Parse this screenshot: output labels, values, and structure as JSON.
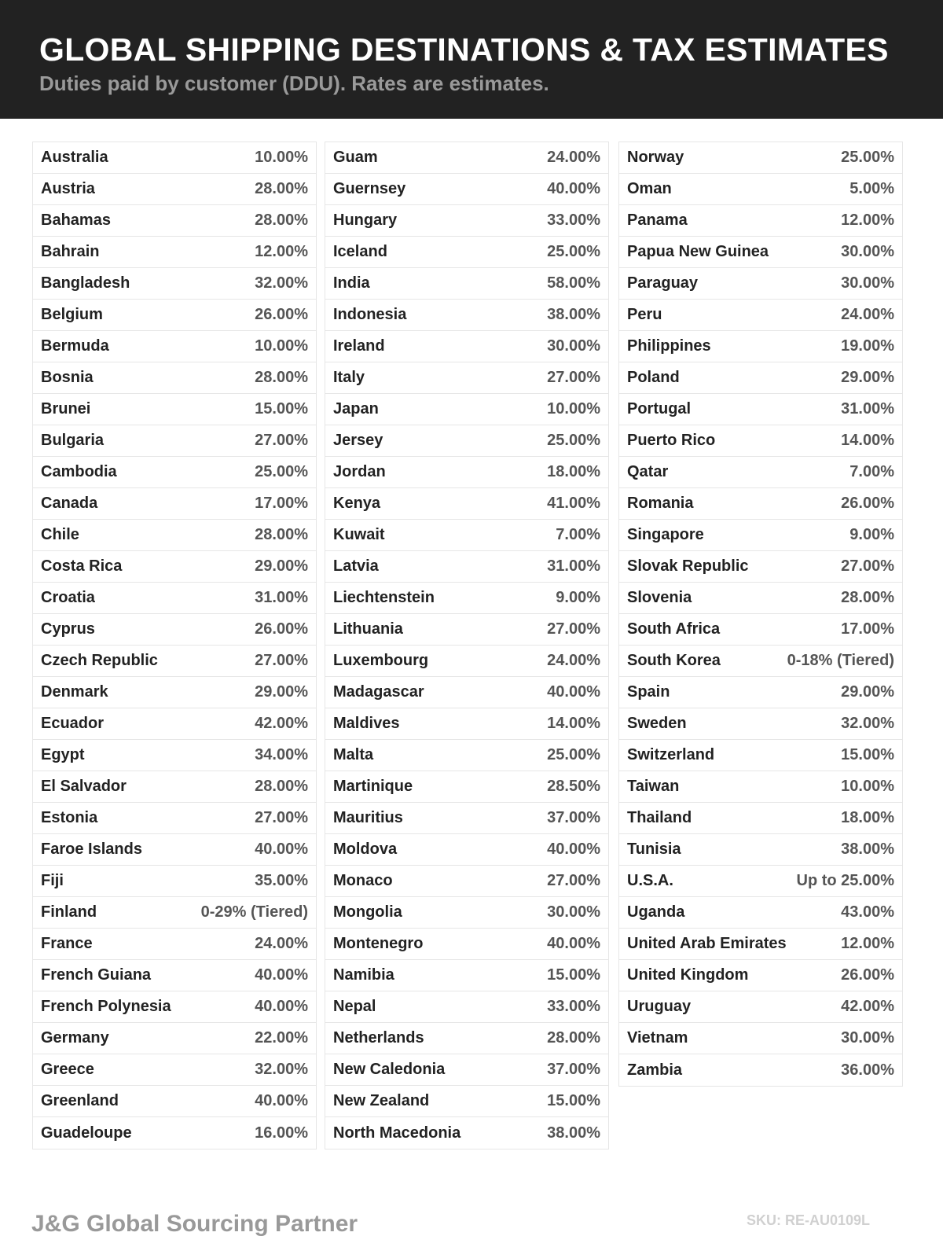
{
  "header": {
    "title": "GLOBAL SHIPPING DESTINATIONS & TAX ESTIMATES",
    "subtitle": "Duties paid by customer (DDU). Rates are estimates."
  },
  "columns": [
    [
      {
        "country": "Australia",
        "rate": "10.00%"
      },
      {
        "country": "Austria",
        "rate": "28.00%"
      },
      {
        "country": "Bahamas",
        "rate": "28.00%"
      },
      {
        "country": "Bahrain",
        "rate": "12.00%"
      },
      {
        "country": "Bangladesh",
        "rate": "32.00%"
      },
      {
        "country": "Belgium",
        "rate": "26.00%"
      },
      {
        "country": "Bermuda",
        "rate": "10.00%"
      },
      {
        "country": "Bosnia",
        "rate": "28.00%"
      },
      {
        "country": "Brunei",
        "rate": "15.00%"
      },
      {
        "country": "Bulgaria",
        "rate": "27.00%"
      },
      {
        "country": "Cambodia",
        "rate": "25.00%"
      },
      {
        "country": "Canada",
        "rate": "17.00%"
      },
      {
        "country": "Chile",
        "rate": "28.00%"
      },
      {
        "country": "Costa Rica",
        "rate": "29.00%"
      },
      {
        "country": "Croatia",
        "rate": "31.00%"
      },
      {
        "country": "Cyprus",
        "rate": "26.00%"
      },
      {
        "country": "Czech Republic",
        "rate": "27.00%"
      },
      {
        "country": "Denmark",
        "rate": "29.00%"
      },
      {
        "country": "Ecuador",
        "rate": "42.00%"
      },
      {
        "country": "Egypt",
        "rate": "34.00%"
      },
      {
        "country": "El Salvador",
        "rate": "28.00%"
      },
      {
        "country": "Estonia",
        "rate": "27.00%"
      },
      {
        "country": "Faroe Islands",
        "rate": "40.00%"
      },
      {
        "country": "Fiji",
        "rate": "35.00%"
      },
      {
        "country": "Finland",
        "rate": "0-29% (Tiered)"
      },
      {
        "country": "France",
        "rate": "24.00%"
      },
      {
        "country": "French Guiana",
        "rate": "40.00%"
      },
      {
        "country": "French Polynesia",
        "rate": "40.00%"
      },
      {
        "country": "Germany",
        "rate": "22.00%"
      },
      {
        "country": "Greece",
        "rate": "32.00%"
      },
      {
        "country": "Greenland",
        "rate": "40.00%"
      },
      {
        "country": "Guadeloupe",
        "rate": "16.00%"
      }
    ],
    [
      {
        "country": "Guam",
        "rate": "24.00%"
      },
      {
        "country": "Guernsey",
        "rate": "40.00%"
      },
      {
        "country": "Hungary",
        "rate": "33.00%"
      },
      {
        "country": "Iceland",
        "rate": "25.00%"
      },
      {
        "country": "India",
        "rate": "58.00%"
      },
      {
        "country": "Indonesia",
        "rate": "38.00%"
      },
      {
        "country": "Ireland",
        "rate": "30.00%"
      },
      {
        "country": "Italy",
        "rate": "27.00%"
      },
      {
        "country": "Japan",
        "rate": "10.00%"
      },
      {
        "country": "Jersey",
        "rate": "25.00%"
      },
      {
        "country": "Jordan",
        "rate": "18.00%"
      },
      {
        "country": "Kenya",
        "rate": "41.00%"
      },
      {
        "country": "Kuwait",
        "rate": "7.00%"
      },
      {
        "country": "Latvia",
        "rate": "31.00%"
      },
      {
        "country": "Liechtenstein",
        "rate": "9.00%"
      },
      {
        "country": "Lithuania",
        "rate": "27.00%"
      },
      {
        "country": "Luxembourg",
        "rate": "24.00%"
      },
      {
        "country": "Madagascar",
        "rate": "40.00%"
      },
      {
        "country": "Maldives",
        "rate": "14.00%"
      },
      {
        "country": "Malta",
        "rate": "25.00%"
      },
      {
        "country": "Martinique",
        "rate": "28.50%"
      },
      {
        "country": "Mauritius",
        "rate": "37.00%"
      },
      {
        "country": "Moldova",
        "rate": "40.00%"
      },
      {
        "country": "Monaco",
        "rate": "27.00%"
      },
      {
        "country": "Mongolia",
        "rate": "30.00%"
      },
      {
        "country": "Montenegro",
        "rate": "40.00%"
      },
      {
        "country": "Namibia",
        "rate": "15.00%"
      },
      {
        "country": "Nepal",
        "rate": "33.00%"
      },
      {
        "country": "Netherlands",
        "rate": "28.00%"
      },
      {
        "country": "New Caledonia",
        "rate": "37.00%"
      },
      {
        "country": "New Zealand",
        "rate": "15.00%"
      },
      {
        "country": "North Macedonia",
        "rate": "38.00%"
      }
    ],
    [
      {
        "country": "Norway",
        "rate": "25.00%"
      },
      {
        "country": "Oman",
        "rate": "5.00%"
      },
      {
        "country": "Panama",
        "rate": "12.00%"
      },
      {
        "country": "Papua New Guinea",
        "rate": "30.00%"
      },
      {
        "country": "Paraguay",
        "rate": "30.00%"
      },
      {
        "country": "Peru",
        "rate": "24.00%"
      },
      {
        "country": "Philippines",
        "rate": "19.00%"
      },
      {
        "country": "Poland",
        "rate": "29.00%"
      },
      {
        "country": "Portugal",
        "rate": "31.00%"
      },
      {
        "country": "Puerto Rico",
        "rate": "14.00%"
      },
      {
        "country": "Qatar",
        "rate": "7.00%"
      },
      {
        "country": "Romania",
        "rate": "26.00%"
      },
      {
        "country": "Singapore",
        "rate": "9.00%"
      },
      {
        "country": "Slovak Republic",
        "rate": "27.00%"
      },
      {
        "country": "Slovenia",
        "rate": "28.00%"
      },
      {
        "country": "South Africa",
        "rate": "17.00%"
      },
      {
        "country": "South Korea",
        "rate": "0-18% (Tiered)"
      },
      {
        "country": "Spain",
        "rate": "29.00%"
      },
      {
        "country": "Sweden",
        "rate": "32.00%"
      },
      {
        "country": "Switzerland",
        "rate": "15.00%"
      },
      {
        "country": "Taiwan",
        "rate": "10.00%"
      },
      {
        "country": "Thailand",
        "rate": "18.00%"
      },
      {
        "country": "Tunisia",
        "rate": "38.00%"
      },
      {
        "country": "U.S.A.",
        "rate": "Up to 25.00%"
      },
      {
        "country": "Uganda",
        "rate": "43.00%"
      },
      {
        "country": "United Arab Emirates",
        "rate": "12.00%"
      },
      {
        "country": "United Kingdom",
        "rate": "26.00%"
      },
      {
        "country": "Uruguay",
        "rate": "42.00%"
      },
      {
        "country": "Vietnam",
        "rate": "30.00%"
      },
      {
        "country": "Zambia",
        "rate": "36.00%"
      }
    ]
  ],
  "footer": {
    "brand": "J&G Global Sourcing Partner",
    "sku": "SKU: RE-AU0109L"
  },
  "colors": {
    "header_bg": "#222222",
    "rate_text": "#555555",
    "brand_text": "#999999"
  }
}
